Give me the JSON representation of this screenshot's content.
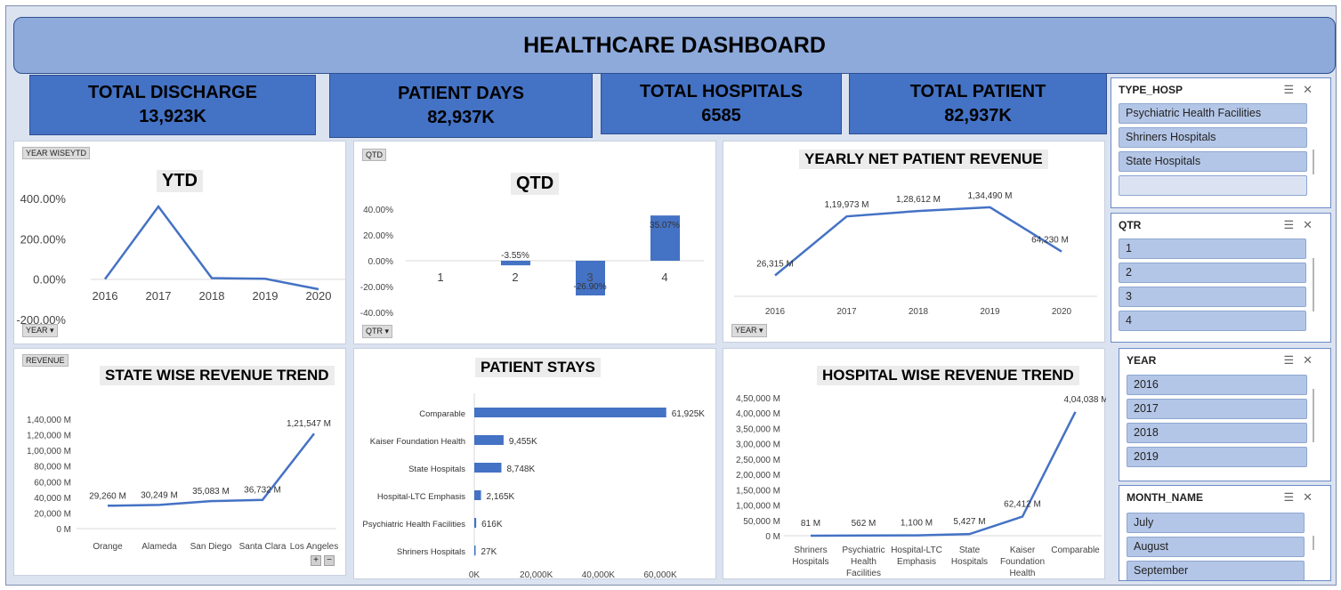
{
  "title": "HEALTHCARE DASHBOARD",
  "kpis": [
    {
      "label": "TOTAL DISCHARGE",
      "value": "13,923K"
    },
    {
      "label": "PATIENT DAYS",
      "value": "82,937K"
    },
    {
      "label": "TOTAL HOSPITALS",
      "value": "6585"
    },
    {
      "label": "TOTAL PATIENT",
      "value": "82,937K"
    }
  ],
  "tags": {
    "ytd_field": "YEAR WISEYTD",
    "ytd_axis": "YEAR",
    "qtd_field": "QTD",
    "qtd_axis": "QTR",
    "rev_axis": "YEAR",
    "state_field": "REVENUE"
  },
  "slicers": {
    "type_hosp": {
      "title": "TYPE_HOSP",
      "items": [
        "Psychiatric Health Facilities",
        "Shriners Hospitals",
        "State Hospitals",
        ""
      ]
    },
    "qtr": {
      "title": "QTR",
      "items": [
        "1",
        "2",
        "3",
        "4"
      ]
    },
    "year": {
      "title": "YEAR",
      "items": [
        "2016",
        "2017",
        "2018",
        "2019"
      ]
    },
    "month": {
      "title": "MONTH_NAME",
      "items": [
        "July",
        "August",
        "September"
      ]
    }
  },
  "zoom": {
    "plus": "+",
    "minus": "−"
  },
  "chart_data": [
    {
      "id": "ytd",
      "type": "line",
      "title": "YTD",
      "categories": [
        "2016",
        "2017",
        "2018",
        "2019",
        "2020"
      ],
      "values": [
        0,
        360,
        5,
        2,
        -50
      ],
      "yticks": [
        "400.00%",
        "200.00%",
        "0.00%",
        "-200.00%"
      ],
      "ylim": [
        -200,
        400
      ],
      "grid": false,
      "color": "#4472c4"
    },
    {
      "id": "qtd",
      "type": "bar",
      "title": "QTD",
      "categories": [
        "1",
        "2",
        "3",
        "4"
      ],
      "values": [
        0,
        -3.55,
        -26.9,
        35.07
      ],
      "data_labels": [
        "",
        "-3.55%",
        "-26.90%",
        "35.07%"
      ],
      "yticks": [
        "40.00%",
        "20.00%",
        "0.00%",
        "-20.00%",
        "-40.00%"
      ],
      "ylim": [
        -40,
        40
      ],
      "color": "#4472c4"
    },
    {
      "id": "net_revenue",
      "type": "line",
      "title": "YEARLY NET PATIENT REVENUE",
      "categories": [
        "2016",
        "2017",
        "2018",
        "2019",
        "2020"
      ],
      "values": [
        26315,
        119973,
        128612,
        134490,
        64230
      ],
      "data_labels": [
        "26,315 M",
        "1,19,973 M",
        "1,28,612 M",
        "1,34,490 M",
        "64,230 M"
      ],
      "color": "#4472c4"
    },
    {
      "id": "state_revenue",
      "type": "line",
      "title": "STATE WISE REVENUE TREND",
      "categories": [
        "Orange",
        "Alameda",
        "San Diego",
        "Santa Clara",
        "Los Angeles"
      ],
      "values": [
        29260,
        30249,
        35083,
        36732,
        121547
      ],
      "data_labels": [
        "29,260 M",
        "30,249 M",
        "35,083 M",
        "36,732 M",
        "1,21,547 M"
      ],
      "yticks": [
        "1,40,000 M",
        "1,20,000 M",
        "1,00,000 M",
        "80,000 M",
        "60,000 M",
        "40,000 M",
        "20,000 M",
        "0 M"
      ],
      "ylim": [
        0,
        140000
      ],
      "color": "#4472c4"
    },
    {
      "id": "patient_stays",
      "type": "bar",
      "orientation": "horizontal",
      "title": "PATIENT STAYS",
      "categories": [
        "Comparable",
        "Kaiser Foundation Health",
        "State Hospitals",
        "Hospital-LTC Emphasis",
        "Psychiatric Health Facilities",
        "Shriners Hospitals"
      ],
      "values": [
        61925,
        9455,
        8748,
        2165,
        616,
        27
      ],
      "data_labels": [
        "61,925K",
        "9,455K",
        "8,748K",
        "2,165K",
        "616K",
        "27K"
      ],
      "xticks": [
        "0K",
        "20,000K",
        "40,000K",
        "60,000K"
      ],
      "xlim": [
        0,
        60000
      ],
      "color": "#4472c4"
    },
    {
      "id": "hospital_revenue",
      "type": "line",
      "title": "HOSPITAL WISE REVENUE TREND",
      "categories": [
        "Shriners Hospitals",
        "Psychiatric Health Facilities",
        "Hospital-LTC Emphasis",
        "State Hospitals",
        "Kaiser Foundation Health",
        "Comparable"
      ],
      "values": [
        81,
        562,
        1100,
        5427,
        62412,
        404038
      ],
      "data_labels": [
        "81 M",
        "562 M",
        "1,100 M",
        "5,427 M",
        "62,412 M",
        "4,04,038 M"
      ],
      "yticks": [
        "4,50,000 M",
        "4,00,000 M",
        "3,50,000 M",
        "3,00,000 M",
        "2,50,000 M",
        "2,00,000 M",
        "1,50,000 M",
        "1,00,000 M",
        "50,000 M",
        "0 M"
      ],
      "ylim": [
        0,
        450000
      ],
      "color": "#4472c4"
    }
  ]
}
